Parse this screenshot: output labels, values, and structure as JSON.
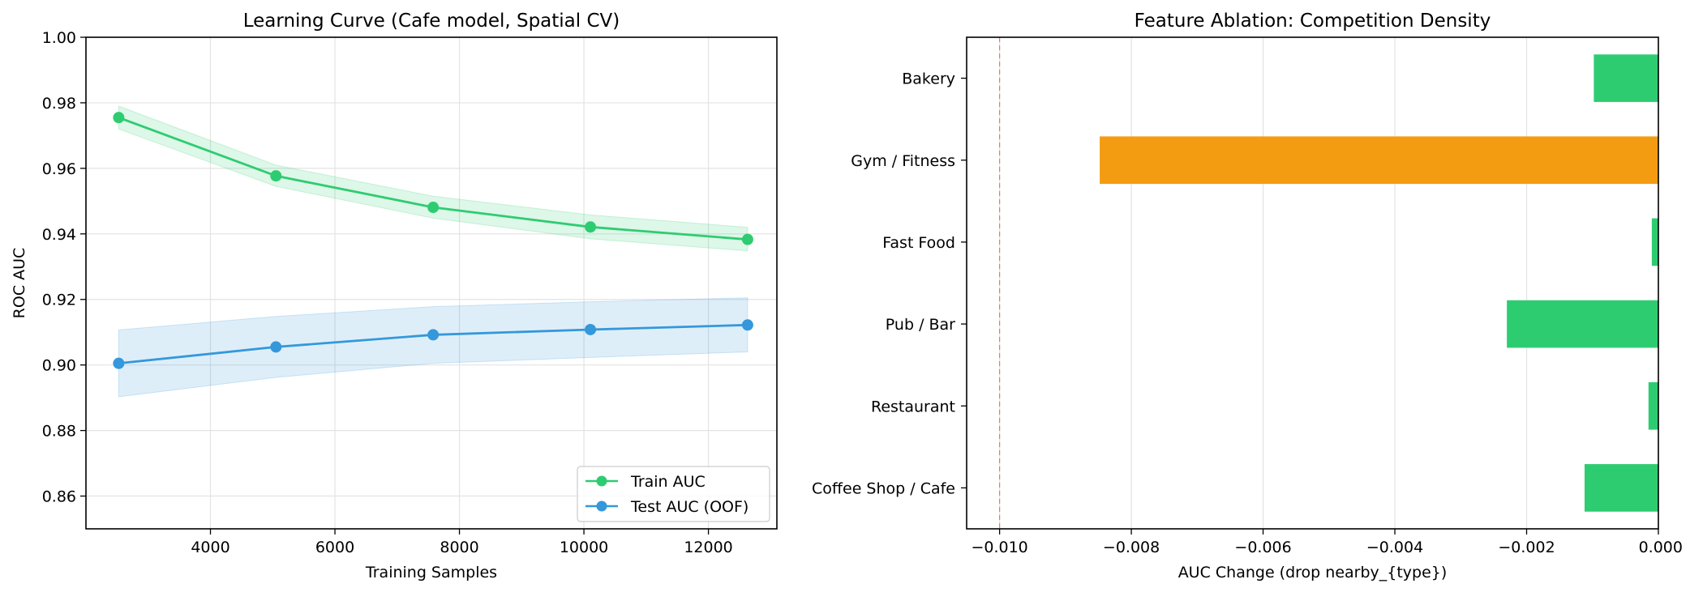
{
  "chart_data": [
    {
      "type": "line",
      "title": "Learning Curve (Cafe model, Spatial CV)",
      "xlabel": "Training Samples",
      "ylabel": "ROC AUC",
      "xlim": [
        2000,
        13100
      ],
      "ylim": [
        0.85,
        1.0
      ],
      "xticks": [
        4000,
        6000,
        8000,
        10000,
        12000
      ],
      "xtick_labels": [
        "4000",
        "6000",
        "8000",
        "10000",
        "12000"
      ],
      "yticks": [
        0.86,
        0.88,
        0.9,
        0.92,
        0.94,
        0.96,
        0.98,
        1.0
      ],
      "ytick_labels": [
        "0.86",
        "0.88",
        "0.90",
        "0.92",
        "0.94",
        "0.96",
        "0.98",
        "1.00"
      ],
      "grid": true,
      "legend_position": "lower-right",
      "x": [
        2526,
        5052,
        7578,
        10104,
        12630
      ],
      "series": [
        {
          "name": "Train AUC",
          "color": "#2ecc71",
          "values": [
            0.9755,
            0.9577,
            0.9481,
            0.9421,
            0.9383
          ],
          "band_upper": [
            0.979,
            0.961,
            0.9515,
            0.9458,
            0.942
          ],
          "band_lower": [
            0.972,
            0.9545,
            0.9448,
            0.9385,
            0.9348
          ]
        },
        {
          "name": "Test AUC (OOF)",
          "color": "#3498db",
          "values": [
            0.9005,
            0.9055,
            0.9092,
            0.9108,
            0.9122
          ],
          "band_upper": [
            0.9107,
            0.9148,
            0.9178,
            0.9193,
            0.9205
          ],
          "band_lower": [
            0.8903,
            0.8962,
            0.9005,
            0.9023,
            0.904
          ]
        }
      ]
    },
    {
      "type": "bar",
      "orientation": "horizontal",
      "title": "Feature Ablation: Competition Density",
      "xlabel": "AUC Change (drop nearby_{type})",
      "ylabel": "",
      "xlim": [
        -0.0105,
        0.0
      ],
      "xticks": [
        -0.01,
        -0.008,
        -0.006,
        -0.004,
        -0.002,
        0.0
      ],
      "xtick_labels": [
        "−0.010",
        "−0.008",
        "−0.006",
        "−0.004",
        "−0.002",
        "0.000"
      ],
      "grid": true,
      "reference_line": {
        "x": -0.01,
        "color": "#e74c3c",
        "style": "dashed"
      },
      "categories": [
        "Coffee Shop / Cafe",
        "Restaurant",
        "Pub / Bar",
        "Fast Food",
        "Gym / Fitness",
        "Bakery"
      ],
      "values": [
        -0.00112,
        -0.00015,
        -0.0023,
        -0.0001,
        -0.00848,
        -0.00098
      ],
      "colors": [
        "#2ecc71",
        "#2ecc71",
        "#2ecc71",
        "#2ecc71",
        "#f39c12",
        "#2ecc71"
      ]
    }
  ]
}
